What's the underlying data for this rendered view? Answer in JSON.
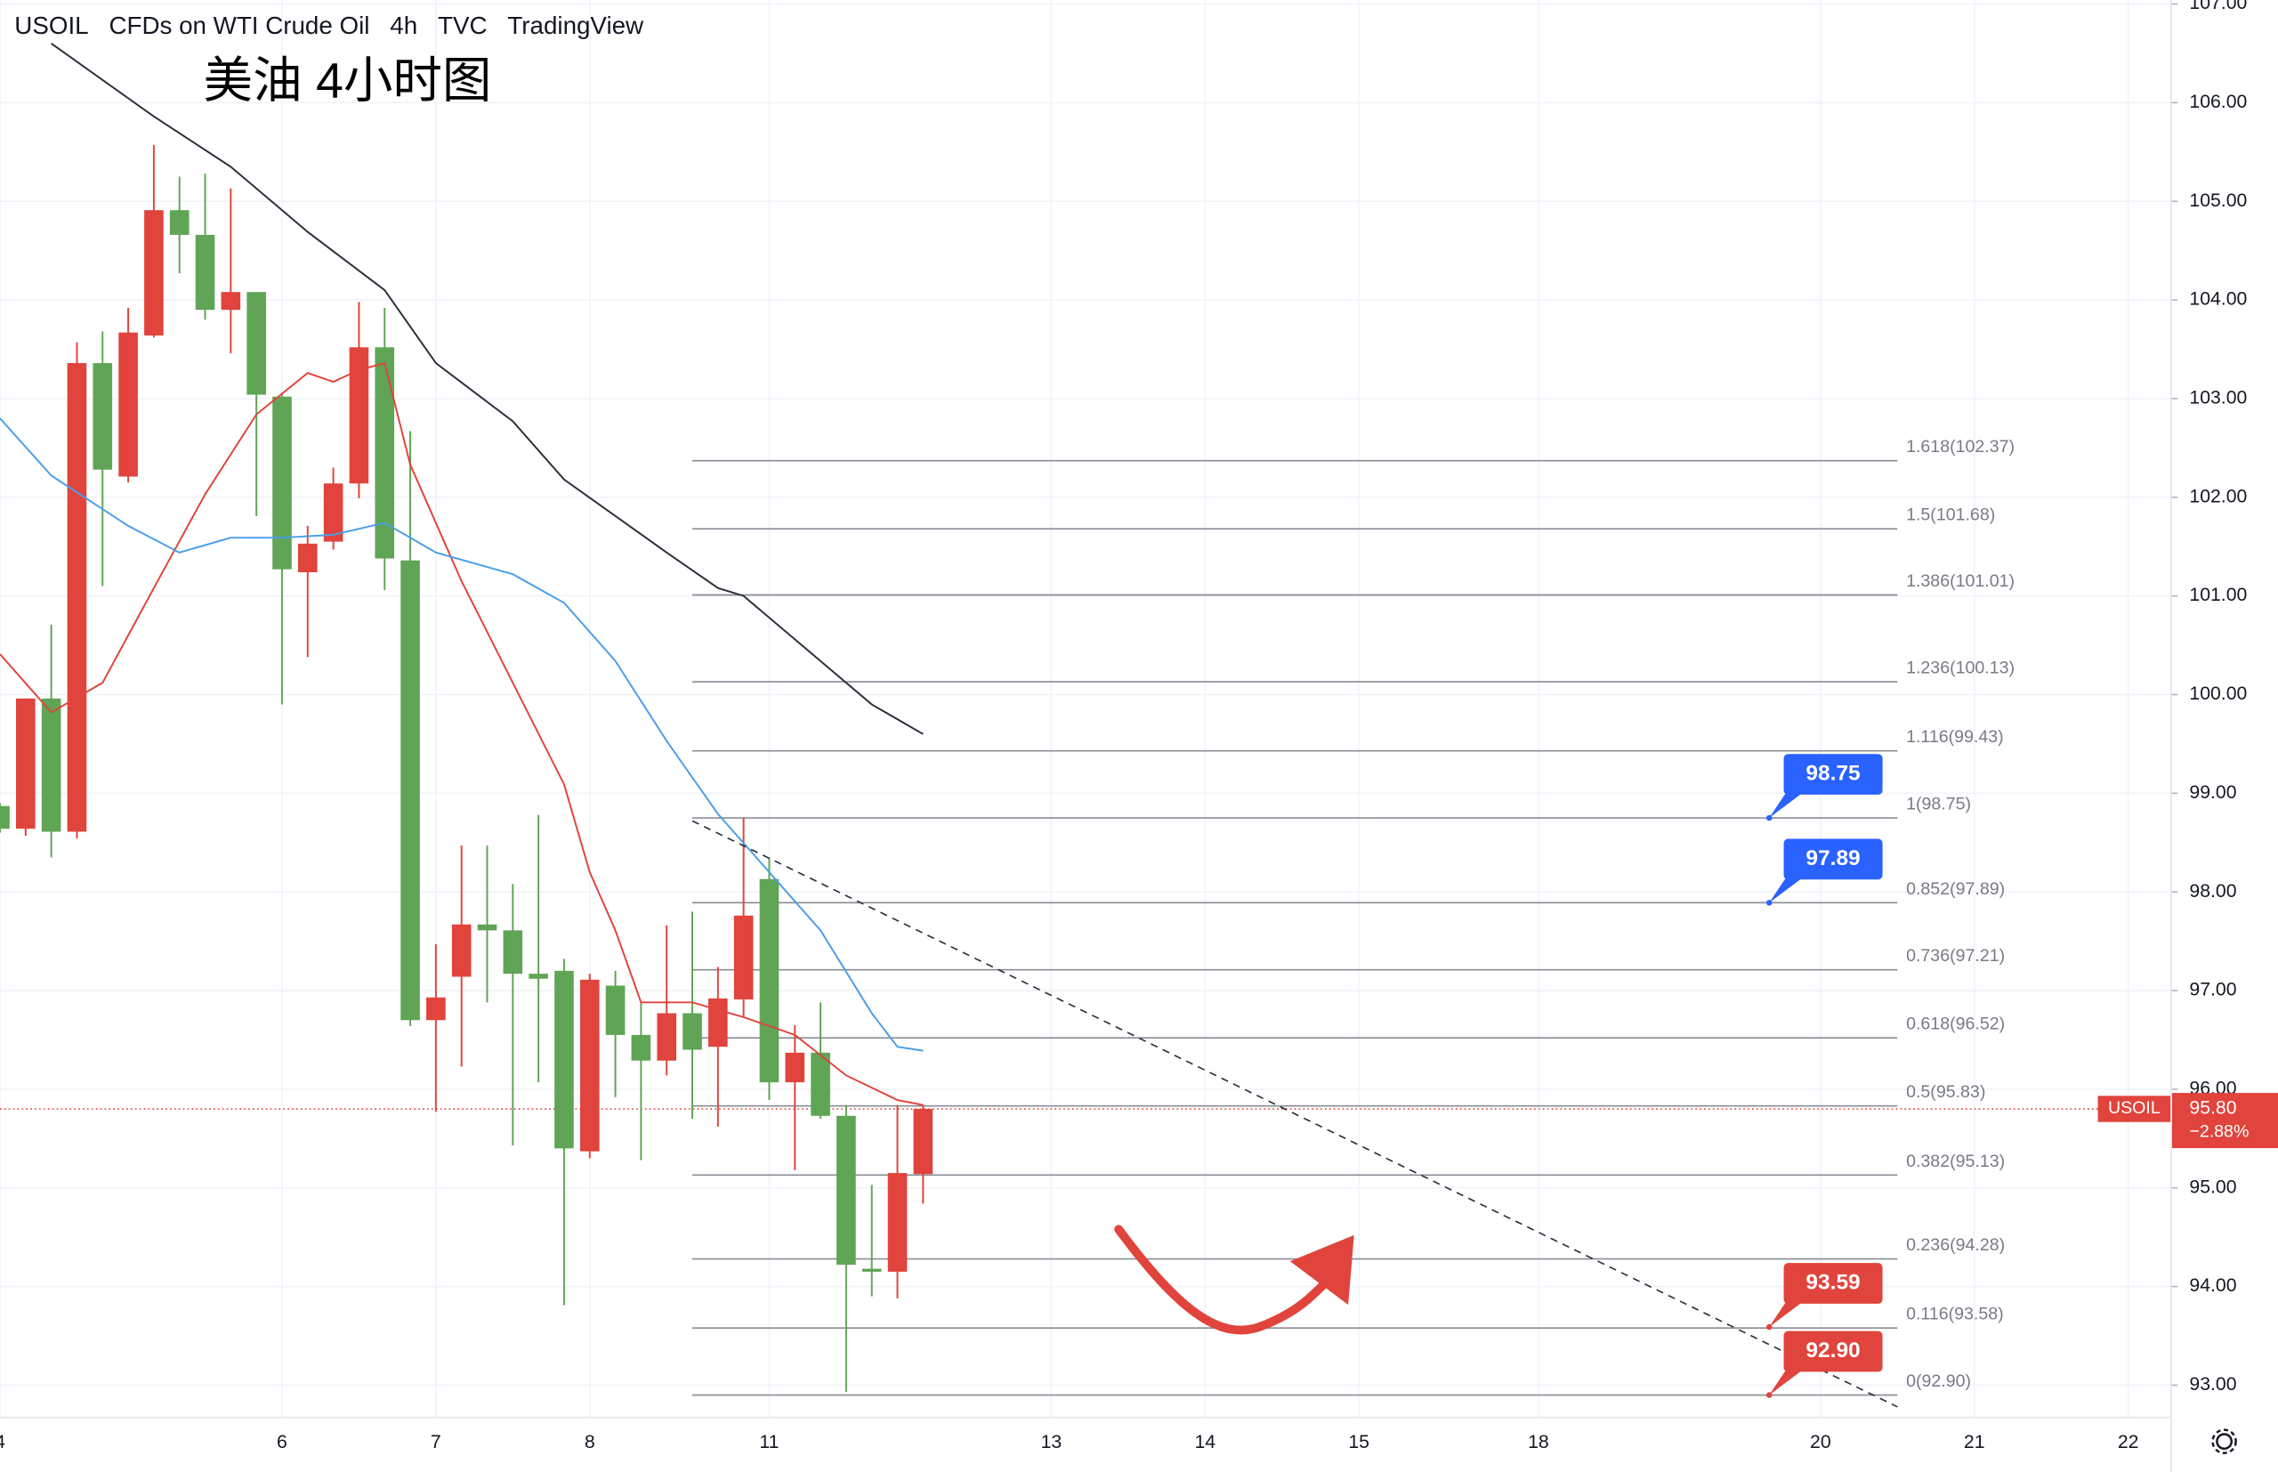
{
  "chart_data": {
    "type": "candlestick",
    "header": [
      "USOIL",
      "CFDs on WTI Crude Oil",
      "4h",
      "TVC",
      "TradingView"
    ],
    "title": "美油 4小时图",
    "up_color": "#5fa555",
    "down_color": "#e0443c",
    "grid": true,
    "xlim": [
      0,
      84.65
    ],
    "xticks": [
      {
        "value": 0,
        "label": "4"
      },
      {
        "value": 11,
        "label": "6"
      },
      {
        "value": 17,
        "label": "7"
      },
      {
        "value": 23,
        "label": "8"
      },
      {
        "value": 30,
        "label": "11"
      },
      {
        "value": 41,
        "label": "13"
      },
      {
        "value": 47,
        "label": "14"
      },
      {
        "value": 53,
        "label": "15"
      },
      {
        "value": 60,
        "label": "18"
      },
      {
        "value": 71,
        "label": "20"
      },
      {
        "value": 77,
        "label": "21"
      },
      {
        "value": 83,
        "label": "22"
      }
    ],
    "ylim": [
      92.68,
      107.04
    ],
    "yticks": [
      {
        "value": 93,
        "label": "93.00"
      },
      {
        "value": 94,
        "label": "94.00"
      },
      {
        "value": 95,
        "label": "95.00"
      },
      {
        "value": 96,
        "label": "96.00"
      },
      {
        "value": 97,
        "label": "97.00"
      },
      {
        "value": 98,
        "label": "98.00"
      },
      {
        "value": 99,
        "label": "99.00"
      },
      {
        "value": 100,
        "label": "100.00"
      },
      {
        "value": 101,
        "label": "101.00"
      },
      {
        "value": 102,
        "label": "102.00"
      },
      {
        "value": 103,
        "label": "103.00"
      },
      {
        "value": 104,
        "label": "104.00"
      },
      {
        "value": 105,
        "label": "105.00"
      },
      {
        "value": 106,
        "label": "106.00"
      },
      {
        "value": 107,
        "label": "107.00"
      }
    ],
    "candles": {
      "open": [
        98.64,
        99.96,
        98.61,
        103.36,
        102.28,
        103.67,
        104.91,
        104.66,
        103.9,
        104.08,
        103.04,
        101.27,
        101.53,
        102.14,
        103.52,
        101.38,
        96.7,
        96.93,
        97.67,
        97.61,
        97.17,
        97.12,
        95.4,
        97.11,
        96.55,
        96.29,
        96.77,
        96.4,
        96.92,
        97.76,
        96.07,
        96.37,
        95.73,
        94.22,
        94.15,
        95.15,
        95.8
      ],
      "high": [
        98.9,
        99.96,
        100.71,
        103.57,
        103.68,
        103.92,
        105.57,
        105.25,
        105.28,
        105.13,
        104.08,
        103.06,
        101.71,
        102.3,
        103.98,
        103.92,
        102.67,
        97.47,
        98.47,
        98.47,
        98.08,
        98.78,
        97.32,
        97.17,
        97.2,
        96.88,
        97.66,
        97.8,
        97.24,
        98.75,
        98.35,
        96.65,
        96.88,
        95.84,
        95.03,
        95.84,
        95.84
      ],
      "low": [
        98.6,
        98.57,
        98.35,
        98.54,
        101.1,
        102.15,
        103.62,
        104.27,
        103.8,
        103.46,
        101.81,
        99.9,
        100.38,
        101.47,
        101.99,
        101.06,
        96.64,
        95.77,
        96.23,
        96.88,
        95.43,
        96.07,
        93.81,
        95.3,
        95.92,
        95.28,
        96.14,
        95.7,
        95.62,
        96.73,
        95.89,
        95.18,
        95.7,
        92.93,
        93.9,
        93.88,
        94.84
      ],
      "close": [
        98.87,
        98.64,
        99.96,
        98.61,
        103.36,
        102.21,
        103.64,
        104.91,
        104.66,
        103.9,
        104.08,
        103.02,
        101.24,
        101.55,
        102.14,
        103.52,
        101.36,
        96.7,
        97.14,
        97.67,
        97.61,
        97.17,
        97.2,
        95.37,
        97.05,
        96.55,
        96.29,
        96.77,
        96.43,
        96.91,
        98.13,
        96.07,
        96.37,
        95.73,
        94.18,
        94.15,
        95.14
      ]
    },
    "series": [
      {
        "color": "#e0443c",
        "x": [
          0,
          2,
          4,
          6,
          8,
          10,
          12,
          13,
          14,
          15,
          16,
          18,
          20,
          22,
          23,
          24,
          25,
          27,
          29,
          31,
          33,
          35,
          36
        ],
        "values": [
          100.41,
          99.82,
          100.12,
          101.08,
          102.03,
          102.84,
          103.26,
          103.17,
          103.29,
          103.36,
          102.33,
          101.15,
          100.12,
          99.09,
          98.2,
          97.61,
          96.88,
          96.88,
          96.73,
          96.55,
          96.14,
          95.89,
          95.84
        ]
      },
      {
        "color": "#4a9ee8",
        "x": [
          0,
          2,
          5,
          7,
          9,
          11,
          13,
          15,
          17,
          20,
          22,
          24,
          26,
          28,
          30,
          32,
          34,
          35,
          36
        ],
        "values": [
          102.8,
          102.22,
          101.71,
          101.44,
          101.59,
          101.59,
          101.62,
          101.74,
          101.44,
          101.22,
          100.93,
          100.34,
          99.53,
          98.79,
          98.2,
          97.61,
          96.77,
          96.43,
          96.39
        ]
      },
      {
        "color": "#2a2e39",
        "x": [
          2,
          6,
          9,
          12,
          15,
          17,
          20,
          22,
          24,
          26,
          28,
          29,
          31,
          33,
          34,
          36
        ],
        "values": [
          106.6,
          105.86,
          105.35,
          104.69,
          104.1,
          103.36,
          102.77,
          102.18,
          101.81,
          101.44,
          101.08,
          101.0,
          100.56,
          100.12,
          99.9,
          99.6
        ]
      }
    ],
    "fib_x": [
      27,
      74
    ],
    "fib_levels": [
      {
        "label": "1.618(102.37)",
        "price": 102.37
      },
      {
        "label": "1.5(101.68)",
        "price": 101.68
      },
      {
        "label": "1.386(101.01)",
        "price": 101.01
      },
      {
        "label": "1.236(100.13)",
        "price": 100.13
      },
      {
        "label": "1.116(99.43)",
        "price": 99.43
      },
      {
        "label": "1(98.75)",
        "price": 98.75
      },
      {
        "label": "0.852(97.89)",
        "price": 97.89
      },
      {
        "label": "0.736(97.21)",
        "price": 97.21
      },
      {
        "label": "0.618(96.52)",
        "price": 96.52
      },
      {
        "label": "0.5(95.83)",
        "price": 95.83
      },
      {
        "label": "0.382(95.13)",
        "price": 95.13
      },
      {
        "label": "0.236(94.28)",
        "price": 94.28
      },
      {
        "label": "0.116(93.58)",
        "price": 93.58
      },
      {
        "label": "0(92.90)",
        "price": 92.9
      }
    ],
    "trendline": {
      "x": [
        27,
        74
      ],
      "y": [
        98.72,
        92.78
      ]
    },
    "price_tags": [
      {
        "value": 98.75,
        "x": 69,
        "color": "#2962ff"
      },
      {
        "value": 97.89,
        "x": 69,
        "color": "#2962ff"
      },
      {
        "value": 93.59,
        "x": 69,
        "color": "#e0443c"
      },
      {
        "value": 92.9,
        "label": "92.90",
        "x": 69,
        "color": "#e0443c"
      }
    ],
    "last_price": {
      "symbol": "USOIL",
      "value": 95.8,
      "label": "95.80",
      "change": "−2.88%",
      "color": "#e0443c"
    }
  }
}
